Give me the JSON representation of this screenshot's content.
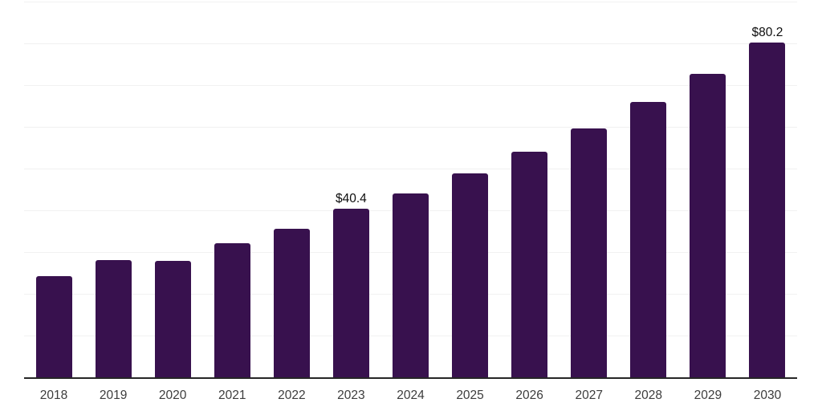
{
  "chart_data": {
    "type": "bar",
    "title": "",
    "xlabel": "",
    "ylabel": "",
    "categories": [
      "2018",
      "2019",
      "2020",
      "2021",
      "2022",
      "2023",
      "2024",
      "2025",
      "2026",
      "2027",
      "2028",
      "2029",
      "2030"
    ],
    "values": [
      24.3,
      28.1,
      27.8,
      32.1,
      35.6,
      40.4,
      44.1,
      48.9,
      54.0,
      59.7,
      65.9,
      72.7,
      80.2
    ],
    "data_labels": [
      {
        "category": "2023",
        "text": "$40.4"
      },
      {
        "category": "2030",
        "text": "$80.2"
      }
    ],
    "ylim": [
      0,
      90
    ],
    "grid_step": 10,
    "grid": "horizontal",
    "y_tick_labels_shown": false,
    "legend_position": "none"
  },
  "style": {
    "bar_color": "#38114E",
    "grid_color": "#f1f1f1",
    "axis_line_color": "#262626",
    "tick_label_color": "#3c3c3c",
    "data_label_color": "#0d0d0d",
    "background_color": "#ffffff"
  }
}
